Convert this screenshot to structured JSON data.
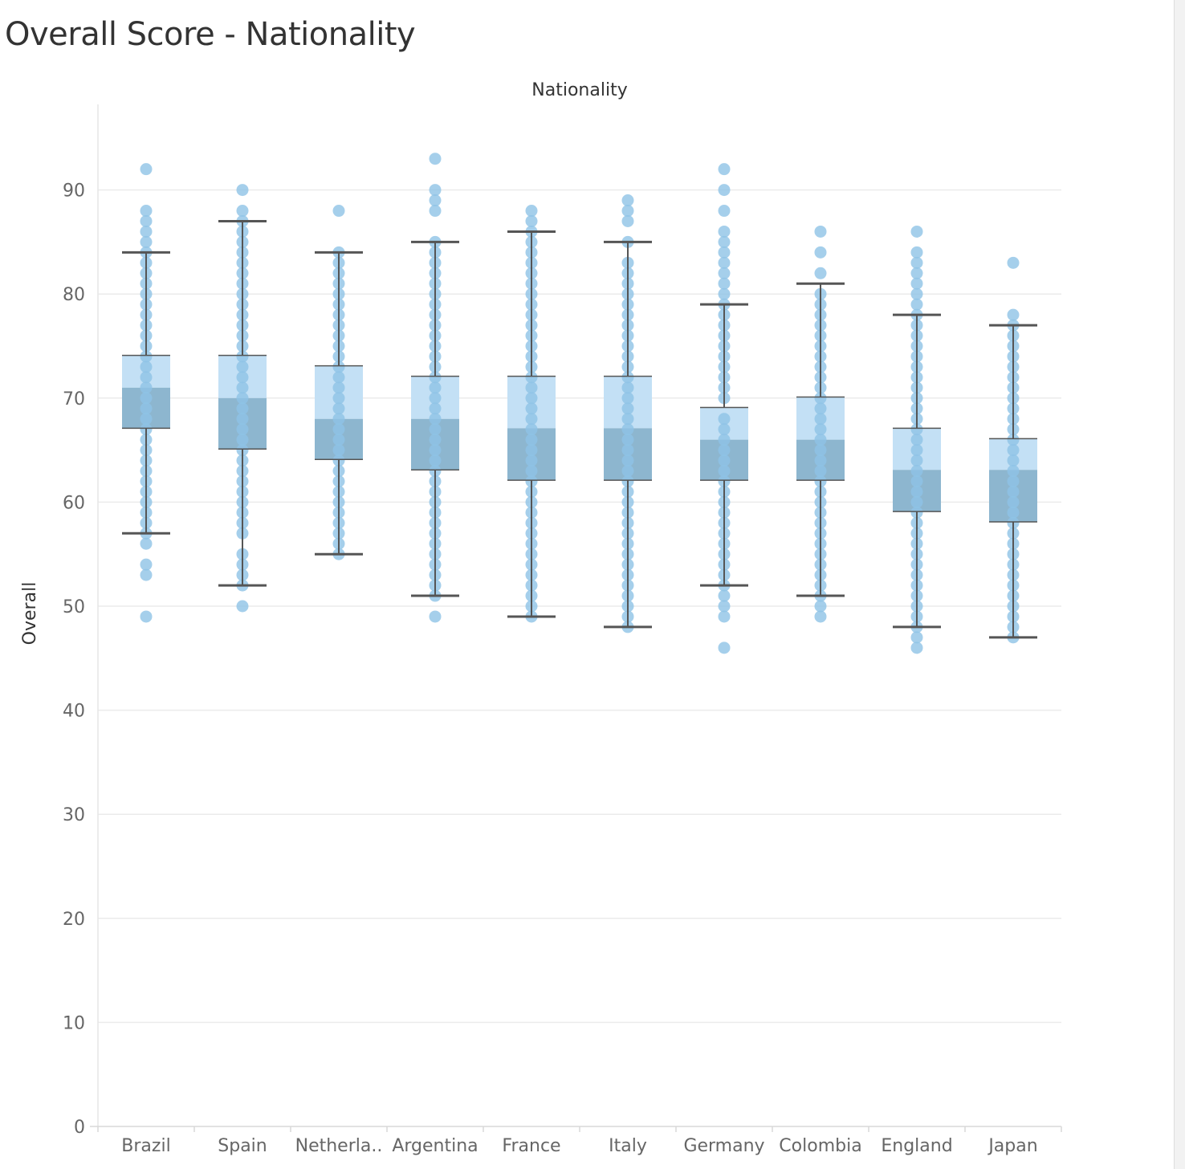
{
  "title": "Overall Score - Nationality",
  "chart_data": {
    "type": "boxplot",
    "title": "Overall Score - Nationality",
    "xlabel": "Nationality",
    "ylabel": "Overall",
    "ylim": [
      0,
      98
    ],
    "yticks": [
      0,
      10,
      20,
      30,
      40,
      50,
      60,
      70,
      80,
      90
    ],
    "categories": [
      "Brazil",
      "Spain",
      "Netherla..",
      "Argentina",
      "France",
      "Italy",
      "Germany",
      "Colombia",
      "England",
      "Japan"
    ],
    "boxes": [
      {
        "category": "Brazil",
        "whisker_low": 57,
        "q1": 67.1,
        "median": 71,
        "q3": 74.1,
        "whisker_high": 84
      },
      {
        "category": "Spain",
        "whisker_low": 52,
        "q1": 65.1,
        "median": 70,
        "q3": 74.1,
        "whisker_high": 87
      },
      {
        "category": "Netherla..",
        "whisker_low": 55,
        "q1": 64.1,
        "median": 68,
        "q3": 73.1,
        "whisker_high": 84
      },
      {
        "category": "Argentina",
        "whisker_low": 51,
        "q1": 63.1,
        "median": 68,
        "q3": 72.1,
        "whisker_high": 85
      },
      {
        "category": "France",
        "whisker_low": 49,
        "q1": 62.1,
        "median": 67.1,
        "q3": 72.1,
        "whisker_high": 86
      },
      {
        "category": "Italy",
        "whisker_low": 48,
        "q1": 62.1,
        "median": 67.1,
        "q3": 72.1,
        "whisker_high": 85
      },
      {
        "category": "Germany",
        "whisker_low": 52,
        "q1": 62.1,
        "median": 66,
        "q3": 69.1,
        "whisker_high": 79
      },
      {
        "category": "Colombia",
        "whisker_low": 51,
        "q1": 62.1,
        "median": 66,
        "q3": 70.1,
        "whisker_high": 81
      },
      {
        "category": "England",
        "whisker_low": 48,
        "q1": 59.1,
        "median": 63.1,
        "q3": 67.1,
        "whisker_high": 78
      },
      {
        "category": "Japan",
        "whisker_low": 47,
        "q1": 58.1,
        "median": 63.1,
        "q3": 66.1,
        "whisker_high": 77
      }
    ],
    "points": [
      [
        49,
        53,
        54,
        56,
        57,
        58,
        59,
        60,
        61,
        62,
        63,
        64,
        65,
        66,
        67,
        68,
        69,
        70,
        71,
        72,
        73,
        74,
        75,
        76,
        77,
        78,
        79,
        80,
        81,
        82,
        83,
        84,
        85,
        86,
        87,
        88,
        92
      ],
      [
        50,
        52,
        53,
        54,
        55,
        57,
        58,
        59,
        60,
        61,
        62,
        63,
        64,
        65,
        66,
        67,
        68,
        69,
        70,
        71,
        72,
        73,
        74,
        75,
        76,
        77,
        78,
        79,
        80,
        81,
        82,
        83,
        84,
        85,
        86,
        87,
        88,
        90
      ],
      [
        55,
        56,
        57,
        58,
        59,
        60,
        61,
        62,
        63,
        64,
        65,
        66,
        67,
        68,
        69,
        70,
        71,
        72,
        73,
        74,
        75,
        76,
        77,
        78,
        79,
        80,
        81,
        82,
        83,
        84,
        88
      ],
      [
        49,
        51,
        52,
        53,
        54,
        55,
        56,
        57,
        58,
        59,
        60,
        61,
        62,
        63,
        64,
        65,
        66,
        67,
        68,
        69,
        70,
        71,
        72,
        73,
        74,
        75,
        76,
        77,
        78,
        79,
        80,
        81,
        82,
        83,
        84,
        85,
        88,
        89,
        90,
        93
      ],
      [
        49,
        50,
        51,
        52,
        53,
        54,
        55,
        56,
        57,
        58,
        59,
        60,
        61,
        62,
        63,
        64,
        65,
        66,
        67,
        68,
        69,
        70,
        71,
        72,
        73,
        74,
        75,
        76,
        77,
        78,
        79,
        80,
        81,
        82,
        83,
        84,
        85,
        86,
        87,
        88
      ],
      [
        48,
        49,
        50,
        51,
        52,
        53,
        54,
        55,
        56,
        57,
        58,
        59,
        60,
        61,
        62,
        63,
        64,
        65,
        66,
        67,
        68,
        69,
        70,
        71,
        72,
        73,
        74,
        75,
        76,
        77,
        78,
        79,
        80,
        81,
        82,
        83,
        85,
        87,
        88,
        89
      ],
      [
        46,
        49,
        50,
        51,
        52,
        53,
        54,
        55,
        56,
        57,
        58,
        59,
        60,
        61,
        62,
        63,
        64,
        65,
        66,
        67,
        68,
        70,
        71,
        72,
        73,
        74,
        75,
        76,
        77,
        78,
        79,
        80,
        81,
        82,
        83,
        84,
        85,
        86,
        88,
        90,
        92
      ],
      [
        49,
        50,
        51,
        52,
        53,
        54,
        55,
        56,
        57,
        58,
        59,
        60,
        61,
        62,
        63,
        64,
        65,
        66,
        67,
        68,
        69,
        70,
        71,
        72,
        73,
        74,
        75,
        76,
        77,
        78,
        79,
        80,
        82,
        84,
        86
      ],
      [
        46,
        47,
        48,
        49,
        50,
        51,
        52,
        53,
        54,
        55,
        56,
        57,
        58,
        59,
        60,
        61,
        62,
        63,
        64,
        65,
        66,
        67,
        68,
        69,
        70,
        71,
        72,
        73,
        74,
        75,
        76,
        77,
        78,
        79,
        80,
        81,
        82,
        83,
        84,
        86
      ],
      [
        47,
        48,
        49,
        50,
        51,
        52,
        53,
        54,
        55,
        56,
        57,
        58,
        59,
        60,
        61,
        62,
        63,
        64,
        65,
        66,
        67,
        68,
        69,
        70,
        71,
        72,
        73,
        74,
        75,
        76,
        77,
        78,
        83
      ]
    ],
    "grid": true,
    "legend": "none",
    "colors": {
      "point": "#8fc3e6",
      "box_upper": "#c3e0f5",
      "box_lower": "#8db6cf",
      "whisker": "#555555",
      "grid": "#ebebeb",
      "text": "#666666"
    }
  }
}
